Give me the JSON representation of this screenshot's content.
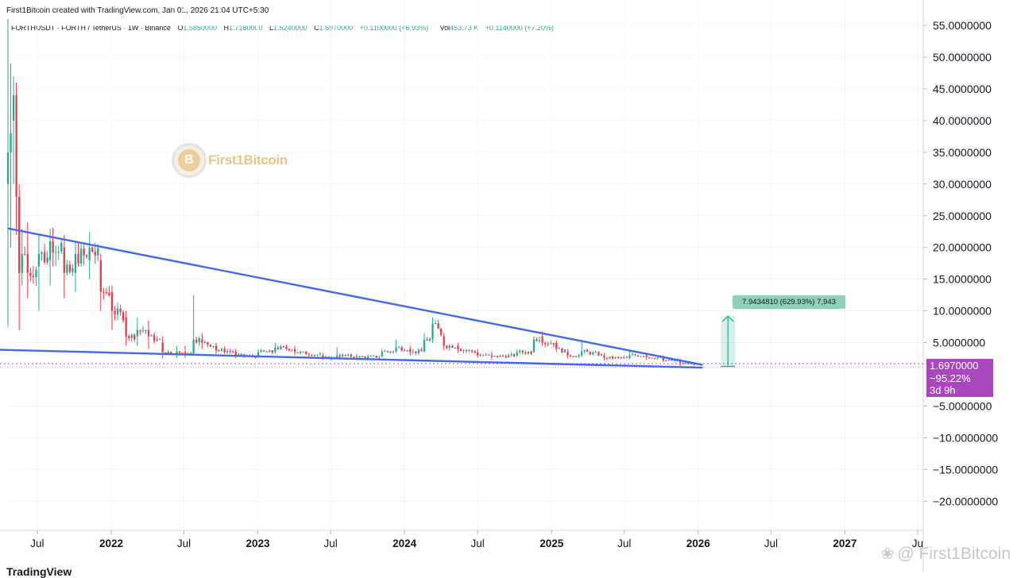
{
  "header": {
    "credit": "First1Bitcoin created with TradingView.com, Jan 01, 2026 21:04 UTC+5:30",
    "symbol": "FORTHUSDT · FORTH / TetherUS · 1W · Binance",
    "o_label": "O",
    "o_value": "1.5850000",
    "h_label": "H",
    "h_value": "1.7180000",
    "l_label": "L",
    "l_value": "1.5240000",
    "c_label": "C",
    "c_value": "1.6970000",
    "change": "+0.1100000 (+6.93%)",
    "vol_label": "Vol",
    "vol_value": "453.73 K",
    "vol_change": "+0.1140000 (+7.20%)"
  },
  "price_badge": {
    "price": "1.6970000",
    "change_pct": "−95.22%",
    "countdown": "3d 9h",
    "color": "#ab47bc"
  },
  "measure_label": "7.9434810 (629.93%) 7,943",
  "watermark": {
    "logo_letter": "B",
    "text": "First1Bitcoin",
    "bottom_text": "@ First1Bitcoin",
    "icon": "paw-icon"
  },
  "footer_logo": "TradingView",
  "chart_data": {
    "type": "candlestick",
    "interval": "1W",
    "y_axis": {
      "min": -25,
      "max": 57,
      "ticks": [
        55,
        50,
        45,
        40,
        35,
        30,
        25,
        20,
        15,
        10,
        5,
        -5,
        -10,
        -15,
        -20
      ],
      "tick_labels": [
        "55.0000000",
        "50.0000000",
        "45.0000000",
        "40.0000000",
        "35.0000000",
        "30.0000000",
        "25.0000000",
        "20.0000000",
        "15.0000000",
        "10.0000000",
        "5.0000000",
        "−5.0000000",
        "−10.0000000",
        "−15.0000000",
        "−20.0000000"
      ]
    },
    "x_axis": {
      "labels": [
        "Jul",
        "2022",
        "Jul",
        "2023",
        "Jul",
        "2024",
        "Jul",
        "2025",
        "Jul",
        "2026",
        "Jul",
        "2027",
        "Ju"
      ],
      "label_dates": [
        "2021-07-01",
        "2022-01-01",
        "2022-07-01",
        "2023-01-01",
        "2023-07-01",
        "2024-01-01",
        "2024-07-01",
        "2025-01-01",
        "2025-07-01",
        "2026-01-01",
        "2026-07-01",
        "2027-01-01",
        "2027-07-01"
      ],
      "bold": [
        false,
        true,
        false,
        true,
        false,
        true,
        false,
        true,
        false,
        true,
        false,
        true,
        false
      ],
      "start": "2021-04-19",
      "end": "2027-07-15"
    },
    "current_price": 1.697,
    "current_price_line_color": "#ab47bc",
    "low_line": 1.1,
    "candles_anchor": [
      [
        "2021-04-19",
        30,
        35,
        56,
        7.5
      ],
      [
        "2021-04-26",
        35,
        38,
        49,
        20
      ],
      [
        "2021-05-03",
        40,
        44,
        47,
        30
      ],
      [
        "2021-05-10",
        44,
        28,
        46,
        22
      ],
      [
        "2021-05-17",
        28,
        16,
        30,
        7
      ],
      [
        "2021-05-24",
        16,
        19,
        23,
        14
      ],
      [
        "2021-06-07",
        19,
        16,
        24,
        12
      ],
      [
        "2021-07-05",
        17,
        19,
        22,
        10
      ],
      [
        "2021-08-02",
        18,
        21,
        23,
        14
      ],
      [
        "2021-09-06",
        20,
        16,
        22,
        12
      ],
      [
        "2021-10-04",
        16,
        19,
        21,
        13
      ],
      [
        "2021-11-08",
        18,
        20,
        22.5,
        15
      ],
      [
        "2021-12-06",
        18,
        13,
        19,
        10
      ],
      [
        "2022-01-03",
        13,
        10,
        14,
        7
      ],
      [
        "2022-02-07",
        9,
        6,
        10,
        4.5
      ],
      [
        "2022-03-07",
        6,
        7,
        9,
        4.5
      ],
      [
        "2022-04-04",
        7,
        6,
        8.5,
        4
      ],
      [
        "2022-05-09",
        5,
        3.5,
        6,
        2.5
      ],
      [
        "2022-06-13",
        3.2,
        3.6,
        4.5,
        2.6
      ],
      [
        "2022-07-04",
        3.5,
        3.3,
        4.5,
        2.6
      ],
      [
        "2022-07-25",
        3.3,
        5.5,
        12.5,
        3.2
      ],
      [
        "2022-08-15",
        5.5,
        5,
        6.5,
        4
      ],
      [
        "2022-09-19",
        4.5,
        3.8,
        5,
        3.2
      ],
      [
        "2022-11-07",
        3.6,
        3,
        4,
        2.5
      ],
      [
        "2023-01-02",
        2.8,
        3.5,
        4,
        2.6
      ],
      [
        "2023-02-13",
        3.5,
        4.2,
        5,
        3.2
      ],
      [
        "2023-04-03",
        4,
        3.5,
        4.5,
        3
      ],
      [
        "2023-06-12",
        3,
        2.6,
        3.4,
        2.3
      ],
      [
        "2023-07-17",
        2.6,
        3,
        4.3,
        2.4
      ],
      [
        "2023-09-04",
        2.8,
        2.7,
        3.2,
        2.4
      ],
      [
        "2023-11-06",
        2.8,
        3.6,
        4,
        2.7
      ],
      [
        "2023-12-11",
        3.6,
        4.2,
        5.5,
        3.4
      ],
      [
        "2024-01-15",
        4,
        3.5,
        4.5,
        3
      ],
      [
        "2024-02-19",
        3.6,
        5.5,
        6.5,
        3.5
      ],
      [
        "2024-03-11",
        5.5,
        8,
        9,
        5
      ],
      [
        "2024-04-08",
        6,
        4.5,
        6.5,
        3.8
      ],
      [
        "2024-05-13",
        4.5,
        4,
        5,
        3.4
      ],
      [
        "2024-07-01",
        3.5,
        3,
        4,
        2.6
      ],
      [
        "2024-08-05",
        3,
        2.8,
        3.6,
        2.3
      ],
      [
        "2024-10-07",
        3,
        3.5,
        4,
        2.7
      ],
      [
        "2024-11-18",
        3.5,
        5.5,
        6,
        3.4
      ],
      [
        "2024-12-09",
        6,
        5,
        6.8,
        4.5
      ],
      [
        "2025-01-13",
        5,
        4,
        5.4,
        3.5
      ],
      [
        "2025-02-10",
        3.5,
        3,
        4,
        2.5
      ],
      [
        "2025-03-17",
        3,
        3.6,
        5.5,
        2.7
      ],
      [
        "2025-05-12",
        3,
        2.6,
        3.4,
        2.2
      ],
      [
        "2025-07-14",
        2.6,
        3,
        3.8,
        2.4
      ],
      [
        "2025-08-25",
        3,
        2.7,
        3.3,
        2.3
      ],
      [
        "2025-10-06",
        2.6,
        2.2,
        3,
        1.9
      ],
      [
        "2025-11-17",
        2.1,
        1.8,
        2.5,
        1.3
      ],
      [
        "2025-12-29",
        1.585,
        1.697,
        1.718,
        1.524
      ]
    ],
    "trendlines": [
      {
        "name": "upper",
        "color": "#3f6ae8",
        "from": [
          "2021-04-19",
          23
        ],
        "to": [
          "2026-01-12",
          1.5
        ]
      },
      {
        "name": "lower",
        "color": "#3f6ae8",
        "from": [
          "2021-03-15",
          3.9
        ],
        "to": [
          "2026-01-12",
          1.05
        ]
      }
    ],
    "projection": {
      "from_price": 1.25,
      "to_price": 9.19,
      "date": "2026-03-16",
      "color": "#22ab94"
    },
    "up_color": "#22ab94",
    "down_color": "#f23645"
  }
}
